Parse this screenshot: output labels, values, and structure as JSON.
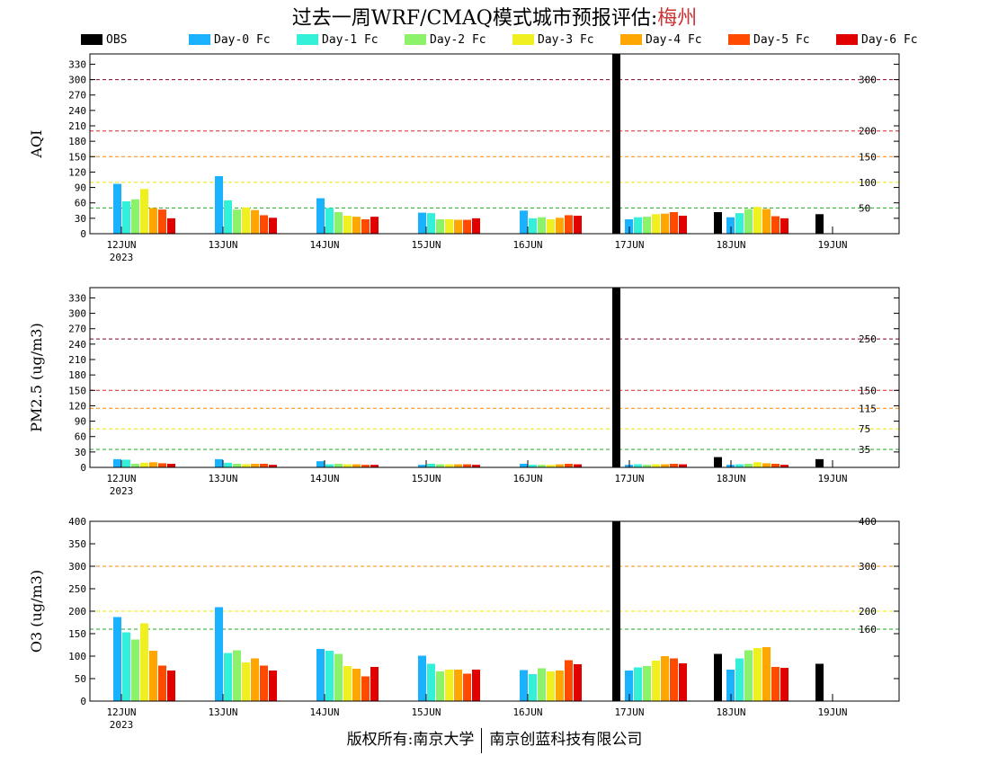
{
  "title": {
    "prefix": "过去一周WRF/CMAQ模式城市预报评估:",
    "city": "梅州"
  },
  "footer": {
    "left": "版权所有:南京大学",
    "right": "南京创蓝科技有限公司"
  },
  "colors": {
    "OBS": "#000000",
    "Day-0 Fc": "#1ab2ff",
    "Day-1 Fc": "#33f0d9",
    "Day-2 Fc": "#8cf26a",
    "Day-3 Fc": "#f0f020",
    "Day-4 Fc": "#ffa600",
    "Day-5 Fc": "#ff4a00",
    "Day-6 Fc": "#e00000"
  },
  "chart_data": [
    {
      "type": "bar",
      "ylabel": "AQI",
      "ylim": [
        0,
        350
      ],
      "yticks": [
        0,
        30,
        60,
        90,
        120,
        150,
        180,
        210,
        240,
        270,
        300,
        330
      ],
      "date_labels": [
        "12JUN",
        "13JUN",
        "14JUN",
        "15JUN",
        "16JUN",
        "17JUN",
        "18JUN",
        "19JUN"
      ],
      "year_label": "2023",
      "thresholds": [
        {
          "value": 50,
          "label": "50",
          "color": "#22aa22"
        },
        {
          "value": 100,
          "label": "100",
          "color": "#e8e800"
        },
        {
          "value": 150,
          "label": "150",
          "color": "#ff8800"
        },
        {
          "value": 200,
          "label": "200",
          "color": "#dd2222"
        },
        {
          "value": 300,
          "label": "300",
          "color": "#880033"
        }
      ],
      "series": [
        {
          "name": "OBS",
          "values": [
            null,
            null,
            null,
            null,
            null,
            350,
            42,
            38
          ]
        },
        {
          "name": "Day-0 Fc",
          "values": [
            97,
            112,
            69,
            41,
            45,
            28,
            32,
            null
          ]
        },
        {
          "name": "Day-1 Fc",
          "values": [
            63,
            65,
            50,
            40,
            30,
            32,
            40,
            null
          ]
        },
        {
          "name": "Day-2 Fc",
          "values": [
            67,
            47,
            42,
            28,
            32,
            33,
            48,
            null
          ]
        },
        {
          "name": "Day-3 Fc",
          "values": [
            87,
            51,
            35,
            28,
            28,
            38,
            52,
            null
          ]
        },
        {
          "name": "Day-4 Fc",
          "values": [
            50,
            46,
            33,
            27,
            31,
            39,
            48,
            null
          ]
        },
        {
          "name": "Day-5 Fc",
          "values": [
            47,
            36,
            28,
            27,
            36,
            42,
            34,
            null
          ]
        },
        {
          "name": "Day-6 Fc",
          "values": [
            30,
            31,
            33,
            30,
            35,
            35,
            30,
            null
          ]
        }
      ]
    },
    {
      "type": "bar",
      "ylabel": "PM2.5 (ug/m3)",
      "ylim": [
        0,
        350
      ],
      "yticks": [
        0,
        30,
        60,
        90,
        120,
        150,
        180,
        210,
        240,
        270,
        300,
        330
      ],
      "date_labels": [
        "12JUN",
        "13JUN",
        "14JUN",
        "15JUN",
        "16JUN",
        "17JUN",
        "18JUN",
        "19JUN"
      ],
      "year_label": "2023",
      "thresholds": [
        {
          "value": 35,
          "label": "35",
          "color": "#22aa22"
        },
        {
          "value": 75,
          "label": "75",
          "color": "#e8e800"
        },
        {
          "value": 115,
          "label": "115",
          "color": "#ff8800"
        },
        {
          "value": 150,
          "label": "150",
          "color": "#dd2222"
        },
        {
          "value": 250,
          "label": "250",
          "color": "#880033"
        }
      ],
      "series": [
        {
          "name": "OBS",
          "values": [
            null,
            null,
            null,
            null,
            null,
            350,
            20,
            16
          ]
        },
        {
          "name": "Day-0 Fc",
          "values": [
            16,
            16,
            12,
            5,
            7,
            5,
            5,
            null
          ]
        },
        {
          "name": "Day-1 Fc",
          "values": [
            15,
            9,
            6,
            7,
            5,
            6,
            6,
            null
          ]
        },
        {
          "name": "Day-2 Fc",
          "values": [
            7,
            7,
            7,
            6,
            5,
            5,
            7,
            null
          ]
        },
        {
          "name": "Day-3 Fc",
          "values": [
            9,
            6,
            6,
            6,
            5,
            6,
            10,
            null
          ]
        },
        {
          "name": "Day-4 Fc",
          "values": [
            10,
            7,
            6,
            6,
            6,
            6,
            8,
            null
          ]
        },
        {
          "name": "Day-5 Fc",
          "values": [
            8,
            7,
            5,
            6,
            7,
            7,
            7,
            null
          ]
        },
        {
          "name": "Day-6 Fc",
          "values": [
            7,
            5,
            5,
            5,
            6,
            6,
            5,
            null
          ]
        }
      ]
    },
    {
      "type": "bar",
      "ylabel": "O3 (ug/m3)",
      "ylim": [
        0,
        400
      ],
      "yticks": [
        0,
        50,
        100,
        150,
        200,
        250,
        300,
        350,
        400
      ],
      "date_labels": [
        "12JUN",
        "13JUN",
        "14JUN",
        "15JUN",
        "16JUN",
        "17JUN",
        "18JUN",
        "19JUN"
      ],
      "year_label": "2023",
      "thresholds": [
        {
          "value": 160,
          "label": "160",
          "color": "#22aa22"
        },
        {
          "value": 200,
          "label": "200",
          "color": "#e8e800"
        },
        {
          "value": 300,
          "label": "300",
          "color": "#ff8800"
        },
        {
          "value": 400,
          "label": "400",
          "color": "#dd2222"
        }
      ],
      "series": [
        {
          "name": "OBS",
          "values": [
            null,
            null,
            null,
            null,
            null,
            400,
            105,
            83
          ]
        },
        {
          "name": "Day-0 Fc",
          "values": [
            187,
            209,
            116,
            101,
            69,
            68,
            70,
            null
          ]
        },
        {
          "name": "Day-1 Fc",
          "values": [
            153,
            107,
            112,
            83,
            60,
            75,
            95,
            null
          ]
        },
        {
          "name": "Day-2 Fc",
          "values": [
            137,
            113,
            105,
            66,
            73,
            78,
            113,
            null
          ]
        },
        {
          "name": "Day-3 Fc",
          "values": [
            173,
            86,
            78,
            70,
            66,
            90,
            118,
            null
          ]
        },
        {
          "name": "Day-4 Fc",
          "values": [
            112,
            95,
            72,
            70,
            68,
            100,
            120,
            null
          ]
        },
        {
          "name": "Day-5 Fc",
          "values": [
            79,
            79,
            55,
            61,
            91,
            95,
            76,
            null
          ]
        },
        {
          "name": "Day-6 Fc",
          "values": [
            68,
            68,
            76,
            70,
            82,
            84,
            74,
            null
          ]
        }
      ]
    }
  ]
}
